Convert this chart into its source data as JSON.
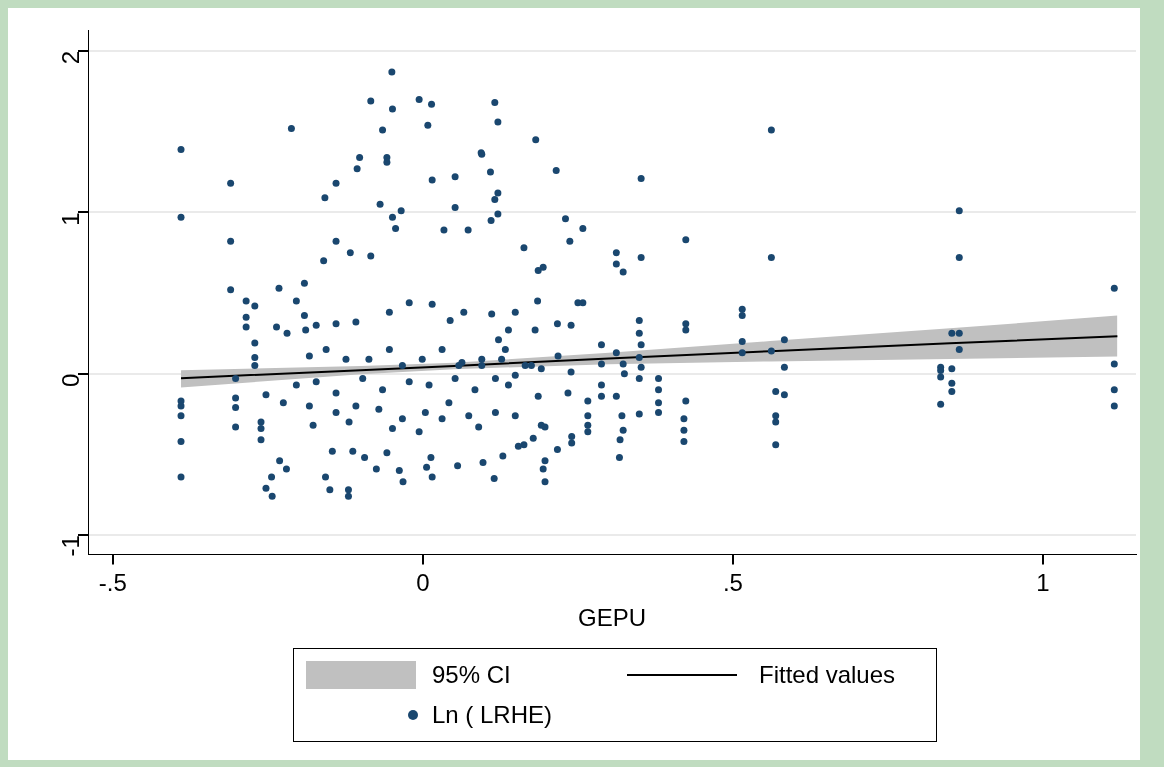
{
  "chart_data": {
    "type": "scatter",
    "xlabel": "GEPU",
    "xlim": [
      -0.54,
      1.15
    ],
    "ylim": [
      -1.12,
      2.13
    ],
    "xticks": [
      {
        "value": -0.5,
        "label": "-.5"
      },
      0,
      {
        "value": 0.5,
        "label": ".5"
      },
      1
    ],
    "yticks": [
      -1,
      0,
      1,
      2
    ],
    "grid": "y",
    "legend": "bottom",
    "annotations": [
      "95% CI"
    ],
    "series": [
      {
        "name": "Fitted values",
        "type": "line",
        "color": "#000000",
        "x": [
          -0.39,
          -0.1,
          0.05,
          0.3,
          0.56,
          0.85,
          1.12
        ],
        "values": [
          -0.028,
          0.022,
          0.048,
          0.094,
          0.139,
          0.188,
          0.232
        ],
        "lower": [
          -0.085,
          -0.003,
          0.028,
          0.059,
          0.076,
          0.091,
          0.107
        ],
        "upper": [
          0.022,
          0.047,
          0.068,
          0.129,
          0.202,
          0.281,
          0.36
        ]
      },
      {
        "name": "Ln ( LRHE)",
        "color": "#1a476f",
        "marker": "circle",
        "x": [
          -0.39,
          -0.39,
          -0.39,
          -0.39,
          -0.39,
          -0.39,
          -0.39,
          -0.31,
          -0.31,
          -0.31,
          -0.302,
          -0.302,
          -0.302,
          -0.302,
          -0.285,
          -0.285,
          -0.285,
          -0.271,
          -0.271,
          -0.271,
          -0.271,
          -0.212,
          -0.084,
          -0.049,
          -0.006,
          0.014,
          0.116,
          0.121,
          -0.065,
          0.008,
          0.182,
          0.095,
          0.215,
          -0.05,
          -0.102,
          -0.106,
          -0.058,
          -0.058,
          -0.14,
          -0.158,
          -0.069,
          0.015,
          0.052,
          0.094,
          0.109,
          0.116,
          0.121,
          0.121,
          0.11,
          0.052,
          -0.035,
          -0.049,
          -0.044,
          -0.14,
          -0.16,
          -0.117,
          -0.084,
          0.034,
          0.073,
          0.163,
          0.186,
          0.23,
          0.258,
          0.237,
          0.312,
          0.312,
          0.323,
          0.352,
          0.424,
          0.352,
          0.194,
          0.25,
          0.258,
          0.185,
          0.349,
          0.349,
          0.352,
          0.349,
          0.352,
          0.349,
          0.349,
          0.38,
          0.38,
          0.38,
          0.38,
          0.424,
          0.424,
          0.424,
          0.421,
          0.421,
          0.421,
          0.288,
          0.288,
          0.288,
          0.288,
          0.312,
          0.323,
          0.325,
          0.312,
          0.321,
          0.318,
          0.317,
          0.323,
          0.266,
          0.266,
          0.266,
          0.266,
          0.24,
          0.24,
          0.217,
          0.197,
          0.194,
          0.197,
          0.115,
          0.129,
          0.178,
          0.163,
          0.154,
          -0.253,
          -0.243,
          -0.15,
          -0.12,
          -0.12,
          -0.157,
          -0.075,
          -0.032,
          0.015,
          0.056,
          0.097,
          -0.244,
          -0.231,
          -0.22,
          -0.261,
          -0.261,
          -0.261,
          -0.253,
          -0.236,
          -0.232,
          -0.204,
          -0.191,
          -0.191,
          -0.189,
          -0.219,
          -0.146,
          -0.113,
          -0.094,
          -0.058,
          -0.038,
          0.006,
          0.013,
          -0.172,
          -0.14,
          -0.108,
          -0.054,
          -0.022,
          0.015,
          0.044,
          0.066,
          0.111,
          0.149,
          0.138,
          -0.183,
          -0.156,
          -0.124,
          -0.087,
          -0.054,
          -0.033,
          -0.001,
          0.031,
          0.063,
          0.095,
          0.127,
          0.175,
          -0.204,
          -0.172,
          -0.14,
          -0.097,
          -0.065,
          -0.022,
          0.01,
          0.052,
          0.084,
          0.117,
          0.149,
          -0.225,
          -0.183,
          -0.14,
          -0.108,
          -0.071,
          -0.033,
          0.004,
          0.042,
          0.074,
          0.117,
          0.149,
          -0.177,
          -0.119,
          -0.049,
          -0.006,
          0.031,
          0.09,
          0.191,
          0.058,
          0.095,
          0.133,
          0.165,
          0.191,
          0.218,
          0.239,
          0.138,
          0.186,
          0.234,
          0.122,
          0.181,
          0.217,
          0.239,
          0.197,
          0.562,
          0.562,
          0.515,
          0.515,
          0.515,
          0.515,
          0.562,
          0.583,
          0.583,
          0.569,
          0.583,
          0.569,
          0.569,
          0.569,
          0.865,
          0.865,
          0.853,
          0.865,
          0.865,
          0.835,
          0.835,
          0.853,
          0.835,
          0.853,
          0.853,
          0.835,
          1.115,
          1.115,
          1.115,
          1.115
        ],
        "values": [
          1.39,
          0.97,
          -0.17,
          -0.2,
          -0.26,
          -0.42,
          -0.64,
          1.18,
          0.82,
          0.52,
          -0.03,
          -0.15,
          -0.21,
          -0.33,
          0.45,
          0.35,
          0.29,
          0.42,
          0.19,
          0.1,
          0.05,
          1.52,
          1.69,
          1.64,
          1.7,
          1.67,
          1.68,
          1.56,
          1.51,
          1.54,
          1.45,
          1.36,
          1.26,
          1.87,
          1.34,
          1.27,
          1.34,
          1.31,
          1.18,
          1.09,
          1.05,
          1.2,
          1.22,
          1.37,
          1.25,
          1.08,
          1.12,
          0.99,
          0.95,
          1.03,
          1.01,
          0.97,
          0.9,
          0.82,
          0.7,
          0.75,
          0.73,
          0.89,
          0.89,
          0.78,
          0.64,
          0.96,
          0.9,
          0.82,
          0.75,
          0.68,
          0.63,
          0.72,
          0.83,
          1.21,
          0.66,
          0.44,
          0.44,
          0.45,
          0.33,
          0.25,
          0.18,
          0.1,
          0.04,
          -0.03,
          -0.25,
          -0.03,
          -0.1,
          -0.18,
          -0.24,
          0.31,
          0.27,
          -0.17,
          -0.28,
          -0.35,
          -0.42,
          0.18,
          0.06,
          -0.07,
          -0.14,
          0.13,
          0.06,
          0,
          -0.14,
          -0.26,
          -0.41,
          -0.52,
          -0.35,
          -0.17,
          -0.26,
          -0.32,
          -0.36,
          -0.39,
          -0.43,
          -0.47,
          -0.54,
          -0.59,
          -0.67,
          -0.65,
          -0.51,
          -0.4,
          -0.44,
          -0.45,
          -0.71,
          -0.76,
          -0.72,
          -0.76,
          -0.72,
          -0.64,
          -0.59,
          -0.67,
          -0.64,
          -0.57,
          -0.55,
          -0.64,
          -0.54,
          -0.59,
          -0.41,
          -0.34,
          -0.3,
          -0.13,
          0.29,
          0.53,
          0.45,
          0.56,
          0.36,
          0.27,
          0.25,
          -0.48,
          -0.48,
          -0.52,
          -0.49,
          -0.6,
          -0.58,
          -0.52,
          0.3,
          0.31,
          0.32,
          0.38,
          0.44,
          0.43,
          0.33,
          0.38,
          0.37,
          0.38,
          0.27,
          0.11,
          0.15,
          0.09,
          0.09,
          0.15,
          0.05,
          0.09,
          0.15,
          0.07,
          0.05,
          0.09,
          0.05,
          -0.07,
          -0.05,
          -0.12,
          -0.03,
          -0.1,
          -0.05,
          -0.07,
          -0.03,
          -0.1,
          -0.03,
          -0.01,
          -0.18,
          -0.2,
          -0.24,
          -0.2,
          -0.22,
          -0.28,
          -0.24,
          -0.18,
          -0.26,
          -0.24,
          -0.26,
          -0.32,
          -0.3,
          -0.34,
          -0.36,
          -0.28,
          -0.33,
          -0.32,
          0.05,
          0.09,
          0.15,
          0.05,
          0.03,
          0.11,
          0.01,
          -0.07,
          -0.14,
          -0.12,
          0.21,
          0.27,
          0.31,
          0.3,
          -0.33,
          1.51,
          0.72,
          0.4,
          0.36,
          0.2,
          0.13,
          0.14,
          0.21,
          0.04,
          -0.11,
          -0.13,
          -0.26,
          -0.3,
          -0.44,
          1.01,
          0.72,
          0.25,
          0.25,
          0.15,
          0.04,
          0.02,
          0.03,
          -0.02,
          -0.06,
          -0.11,
          -0.19,
          0.53,
          0.06,
          -0.1,
          -0.2
        ]
      }
    ]
  }
}
